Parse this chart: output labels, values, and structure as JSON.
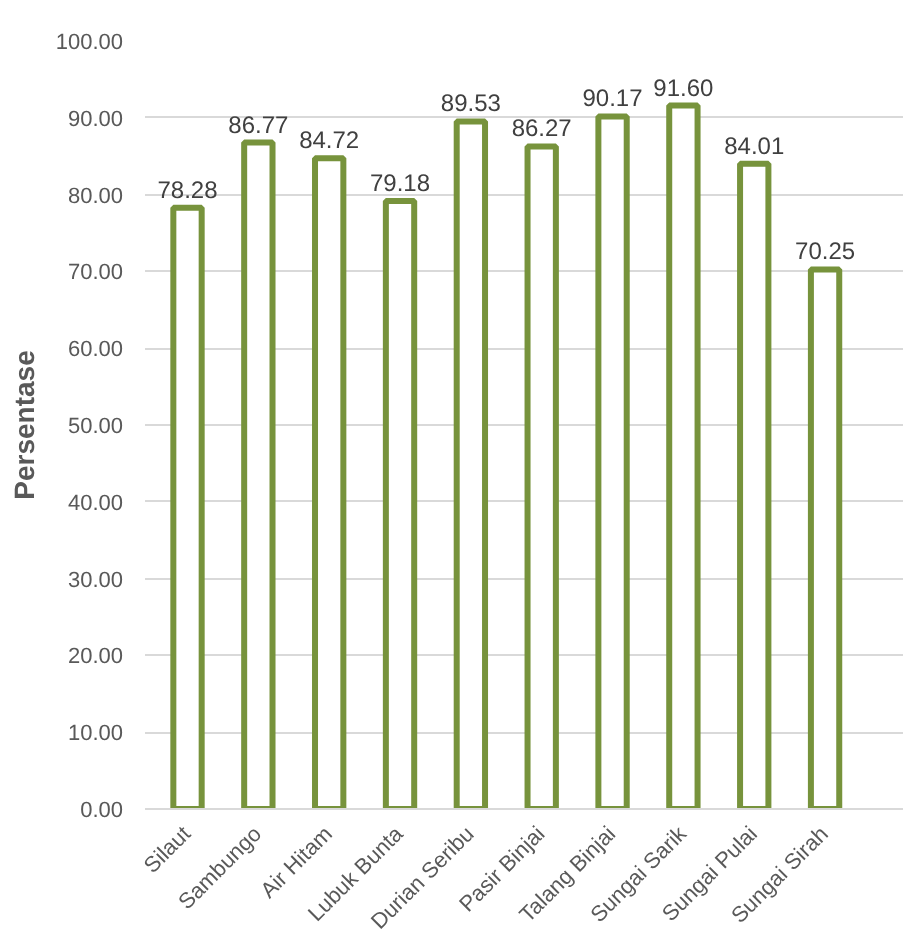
{
  "chart_data": {
    "type": "bar",
    "ylabel": "Persentase",
    "categories": [
      "Silaut",
      "Sambungo",
      "Air Hitam",
      "Lubuk Bunta",
      "Durian Seribu",
      "Pasir Binjai",
      "Talang Binjai",
      "Sungai Sarik",
      "Sungai Pulai",
      "Sungai Sirah"
    ],
    "values": [
      78.28,
      86.77,
      84.72,
      79.18,
      89.53,
      86.27,
      90.17,
      91.6,
      84.01,
      70.25
    ],
    "value_labels": [
      "78.28",
      "86.77",
      "84.72",
      "79.18",
      "89.53",
      "86.27",
      "90.17",
      "91.60",
      "84.01",
      "70.25"
    ],
    "color": "#77933c",
    "ylim": [
      0,
      100
    ],
    "yticks": [
      {
        "value": 0,
        "label": "0.00"
      },
      {
        "value": 10,
        "label": "10.00"
      },
      {
        "value": 20,
        "label": "20.00"
      },
      {
        "value": 30,
        "label": "30.00"
      },
      {
        "value": 40,
        "label": "40.00"
      },
      {
        "value": 50,
        "label": "50.00"
      },
      {
        "value": 60,
        "label": "60.00"
      },
      {
        "value": 70,
        "label": "70.00"
      },
      {
        "value": 80,
        "label": "80.00"
      },
      {
        "value": 90,
        "label": "90.00"
      },
      {
        "value": 100,
        "label": "100.00"
      }
    ],
    "grid": "y"
  }
}
